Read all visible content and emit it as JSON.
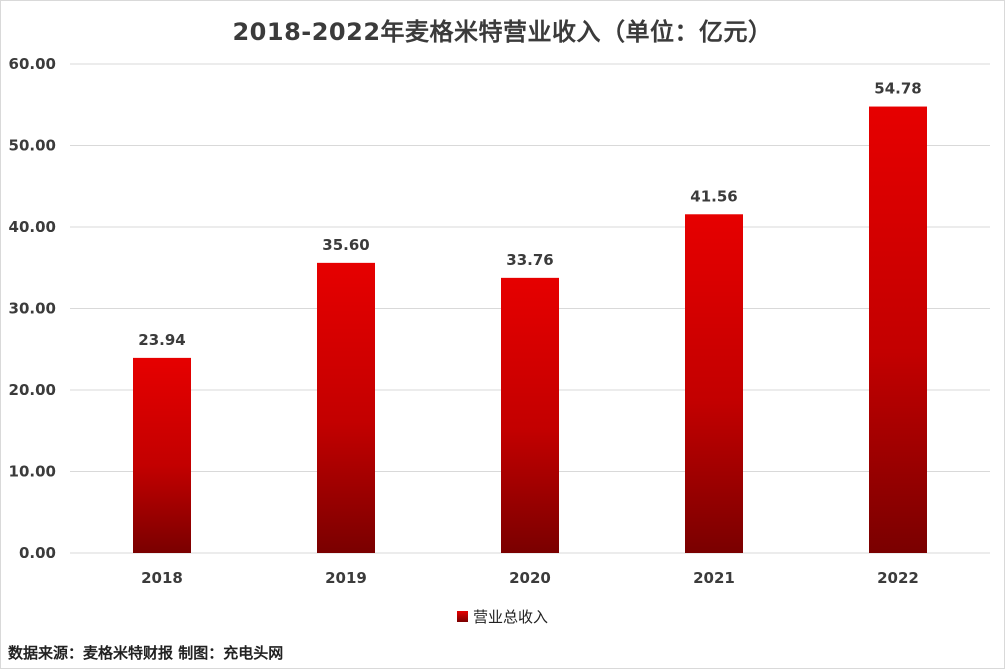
{
  "chart_data": {
    "type": "bar",
    "title": "2018-2022年麦格米特营业收入（单位：亿元）",
    "categories": [
      "2018",
      "2019",
      "2020",
      "2021",
      "2022"
    ],
    "series": [
      {
        "name": "营业总收入",
        "values": [
          23.94,
          35.6,
          33.76,
          41.56,
          54.78
        ]
      }
    ],
    "value_labels": [
      "23.94",
      "35.60",
      "33.76",
      "41.56",
      "54.78"
    ],
    "y_ticks": [
      "0.00",
      "10.00",
      "20.00",
      "30.00",
      "40.00",
      "50.00",
      "60.00"
    ],
    "ylim": [
      0,
      60
    ],
    "grid": true,
    "legend_position": "bottom",
    "colors": {
      "bar_top": "#e60000",
      "bar_bottom": "#7a0000",
      "grid": "#d9d9d9"
    }
  },
  "footer": {
    "source": "数据来源：麦格米特财报 制图：充电头网"
  }
}
